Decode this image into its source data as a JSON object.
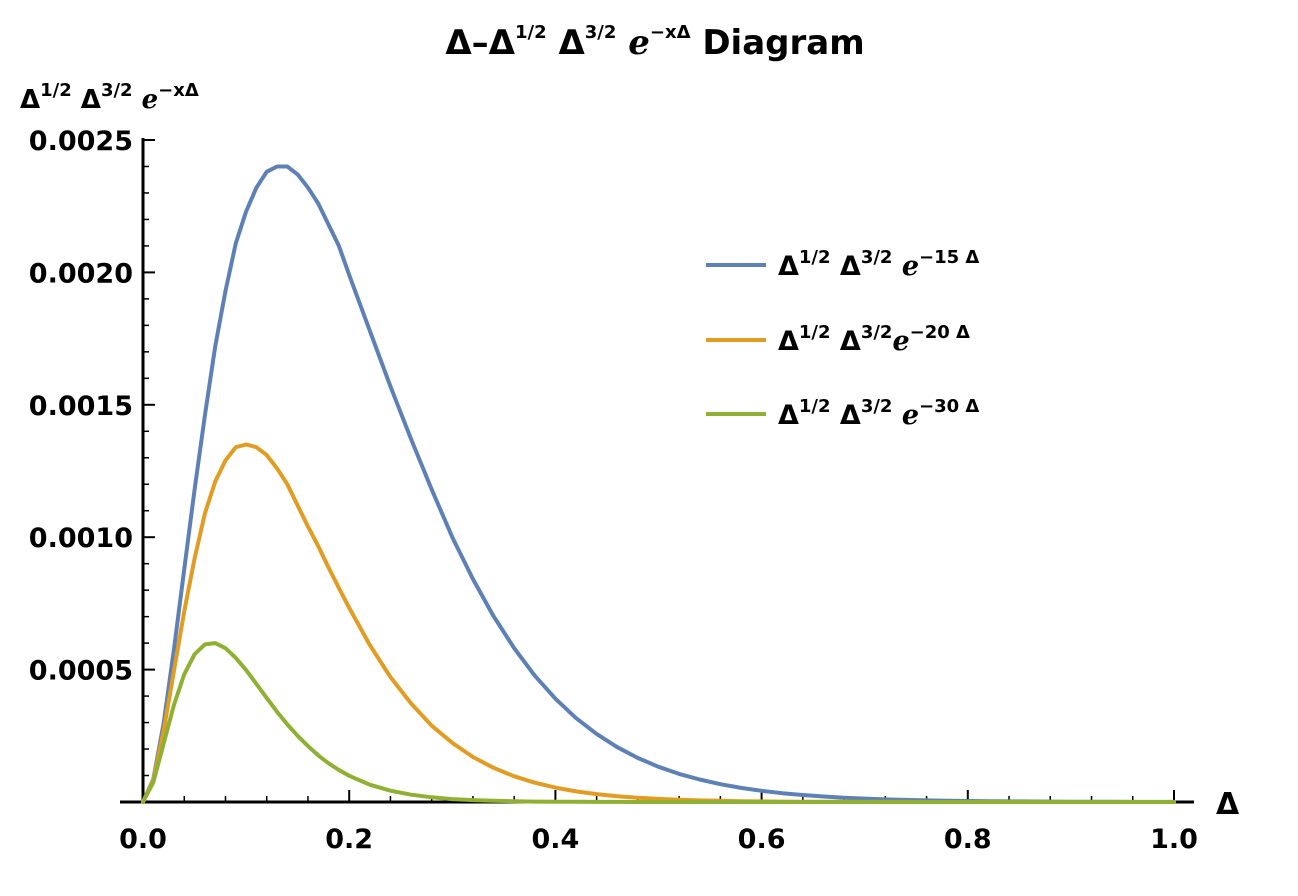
{
  "chart_data": {
    "type": "line",
    "title": {
      "prefix": "Δ–Δ",
      "exp1": "1/2",
      "mid": " Δ",
      "exp2": "3/2",
      "e": " e",
      "exp3": "−xΔ",
      "suffix": " Diagram"
    },
    "ylabel": {
      "base1": "Δ",
      "exp1": "1/2",
      "base2": " Δ",
      "exp2": "3/2",
      "e": " e",
      "exp3": "−xΔ"
    },
    "xlabel": "Δ",
    "xlim": [
      0,
      1.0
    ],
    "ylim": [
      0,
      0.0025
    ],
    "x_ticks": [
      {
        "value": 0.0,
        "label": "0.0"
      },
      {
        "value": 0.2,
        "label": "0.2"
      },
      {
        "value": 0.4,
        "label": "0.4"
      },
      {
        "value": 0.6,
        "label": "0.6"
      },
      {
        "value": 0.8,
        "label": "0.8"
      },
      {
        "value": 1.0,
        "label": "1.0"
      }
    ],
    "y_ticks": [
      {
        "value": 0.0005,
        "label": "0.0005"
      },
      {
        "value": 0.001,
        "label": "0.0010"
      },
      {
        "value": 0.0015,
        "label": "0.0015"
      },
      {
        "value": 0.002,
        "label": "0.0020"
      },
      {
        "value": 0.0025,
        "label": "0.0025"
      }
    ],
    "grid": false,
    "legend_position": "top-right",
    "x": [
      0,
      0.01,
      0.02,
      0.03,
      0.04,
      0.05,
      0.06,
      0.07,
      0.08,
      0.09,
      0.1,
      0.11,
      0.12,
      0.13,
      0.14,
      0.15,
      0.16,
      0.17,
      0.18,
      0.19,
      0.2,
      0.22,
      0.24,
      0.26,
      0.28,
      0.3,
      0.32,
      0.34,
      0.36,
      0.38,
      0.4,
      0.42,
      0.44,
      0.46,
      0.48,
      0.5,
      0.52,
      0.54,
      0.56,
      0.58,
      0.6,
      0.62,
      0.64,
      0.66,
      0.68,
      0.7,
      0.72,
      0.74,
      0.76,
      0.78,
      0.8,
      0.82,
      0.84,
      0.86,
      0.88,
      0.9,
      0.92,
      0.94,
      0.96,
      0.98,
      1.0
    ],
    "series": [
      {
        "name": {
          "base1": "Δ",
          "exp1": "1/2",
          "base2": " Δ",
          "exp2": "3/2",
          "e": " e",
          "exp3": "−15 Δ"
        },
        "color": "#5e81b5",
        "values": [
          0,
          8.61e-05,
          0.000296,
          0.000575,
          0.000878,
          0.00118,
          0.00146,
          0.00172,
          0.00193,
          0.00211,
          0.00223,
          0.00232,
          0.00238,
          0.0024,
          0.0024,
          0.00237,
          0.00232,
          0.00226,
          0.00218,
          0.0021,
          0.00199,
          0.00178,
          0.00157,
          0.00137,
          0.00118,
          0.001,
          0.000842,
          0.000702,
          0.000581,
          0.000477,
          0.00039,
          0.000317,
          0.000257,
          0.000207,
          0.000166,
          0.000133,
          0.000106,
          8.48e-05,
          6.74e-05,
          5.34e-05,
          4.23e-05,
          3.34e-05,
          2.63e-05,
          2.07e-05,
          1.63e-05,
          1.28e-05,
          1e-05,
          7.82e-06,
          6.11e-06,
          4.76e-06,
          3.71e-06,
          2.89e-06,
          2.24e-06,
          1.74e-06,
          1.35e-06,
          1.04e-06,
          8.08e-07,
          6.24e-07,
          4.82e-07,
          3.71e-07,
          2.86e-07
        ]
      },
      {
        "name": {
          "base1": "Δ",
          "exp1": "1/2",
          "base2": " Δ",
          "exp2": "3/2",
          "e": "e",
          "exp3": "−20 Δ"
        },
        "color": "#e19c24",
        "values": [
          0,
          8.19e-05,
          0.000268,
          0.000494,
          0.000719,
          0.00092,
          0.00109,
          0.00121,
          0.00129,
          0.00134,
          0.00135,
          0.00134,
          0.00131,
          0.00126,
          0.0012,
          0.00112,
          0.00104,
          0.000966,
          0.000885,
          0.000808,
          0.000733,
          0.000593,
          0.000472,
          0.000372,
          0.000288,
          0.000223,
          0.00017,
          0.000129,
          9.72e-05,
          7.29e-05,
          5.42e-05,
          4.02e-05,
          2.97e-05,
          2.18e-05,
          1.59e-05,
          1.16e-05,
          8.42e-06,
          6.1e-06,
          4.41e-06,
          3.18e-06,
          2.28e-06,
          1.63e-06,
          1.17e-06,
          8.34e-07,
          5.94e-07,
          4.23e-07,
          3.01e-07,
          2.13e-07,
          1.51e-07,
          1.07e-07,
          7.57e-08,
          5.34e-08,
          3.77e-08,
          2.65e-08,
          1.87e-08,
          1.31e-08,
          9.22e-09,
          6.47e-09,
          4.53e-09,
          3.18e-09,
          2.22e-09
        ]
      },
      {
        "name": {
          "base1": "Δ",
          "exp1": "1/2",
          "base2": " Δ",
          "exp2": "3/2",
          "e": " e",
          "exp3": "−30 Δ"
        },
        "color": "#8fb032",
        "values": [
          0,
          7.41e-05,
          0.00022,
          0.000366,
          0.000482,
          0.000558,
          0.000595,
          0.0006,
          0.000581,
          0.000544,
          0.000498,
          0.000446,
          0.000393,
          0.000341,
          0.000293,
          0.00025,
          0.000211,
          0.000176,
          0.000146,
          0.000121,
          9.91e-05,
          6.54e-05,
          4.28e-05,
          2.76e-05,
          1.76e-05,
          1.11e-05,
          7e-06,
          4.36e-06,
          2.7e-06,
          1.66e-06,
          1.01e-06,
          6.17e-07,
          3.74e-07,
          2.25e-07,
          1.35e-07,
          8.11e-08,
          4.84e-08,
          2.88e-08,
          1.71e-08,
          1.01e-08,
          5.97e-09,
          3.51e-09,
          2.06e-09,
          1.21e-09,
          7.06e-10,
          4.12e-10,
          2.4e-10,
          1.4e-10,
          8.11e-11,
          4.7e-11,
          2.72e-11,
          1.57e-11,
          9.08e-12,
          5.24e-12,
          3.02e-12,
          1.74e-12,
          1e-12,
          5.76e-13,
          3.31e-13,
          1.9e-13,
          1.09e-13
        ]
      }
    ]
  }
}
